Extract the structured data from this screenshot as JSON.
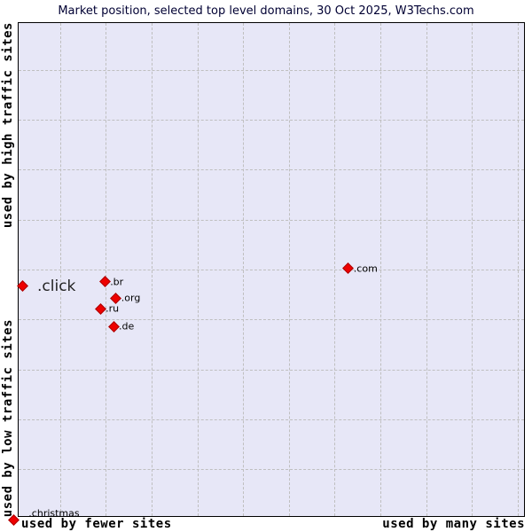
{
  "title": "Market position, selected top level domains, 30 Oct 2025, W3Techs.com",
  "axes": {
    "left_top": "used by high traffic sites",
    "left_bottom": "used by low traffic sites",
    "bottom_left": "used by fewer sites",
    "bottom_right": "used by many sites"
  },
  "colors": {
    "marker": "#ee0000",
    "marker_border": "#aa0000",
    "plot_background": "#e7e7f7",
    "grid": "#bfbfbf",
    "title_text": "#000033"
  },
  "chart_data": {
    "type": "scatter",
    "title": "Market position, selected top level domains, 30 Oct 2025, W3Techs.com",
    "xlabel_low": "used by fewer sites",
    "xlabel_high": "used by many sites",
    "ylabel_low": "used by low traffic sites",
    "ylabel_high": "used by high traffic sites",
    "grid": true,
    "marker_shape": "diamond",
    "axis_ranges_note": "axes unlabeled (relative market position, 0-100%)",
    "points": [
      {
        "label": ".com",
        "x_pct": 65.0,
        "y_pct": 49.6,
        "highlight": false
      },
      {
        "label": ".br",
        "x_pct": 17.0,
        "y_pct": 52.3,
        "highlight": false
      },
      {
        "label": ".org",
        "x_pct": 19.2,
        "y_pct": 55.6,
        "highlight": false
      },
      {
        "label": ".ru",
        "x_pct": 16.1,
        "y_pct": 57.7,
        "highlight": false
      },
      {
        "label": ".de",
        "x_pct": 18.7,
        "y_pct": 61.3,
        "highlight": false
      },
      {
        "label": ".click",
        "x_pct": 0.7,
        "y_pct": 53.2,
        "highlight": true,
        "label_dx": 11
      },
      {
        "label": ".christmas",
        "x_pct": -1.0,
        "y_pct": 100.5,
        "highlight": false,
        "label_dx": 11,
        "label_dy": -8
      }
    ]
  }
}
